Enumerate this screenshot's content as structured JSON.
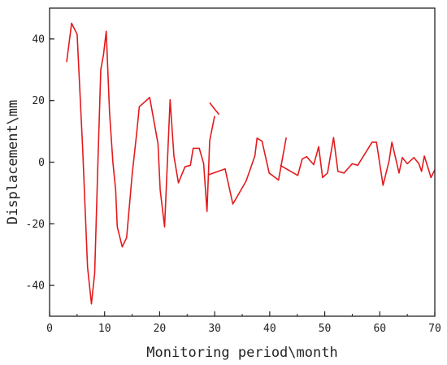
{
  "chart_data": {
    "type": "line",
    "title": "",
    "xlabel": "Monitoring period\\month",
    "ylabel": "Displacement\\mm",
    "xlim": [
      0,
      70
    ],
    "ylim": [
      -50,
      50
    ],
    "xticks": [
      0,
      10,
      20,
      30,
      40,
      50,
      60,
      70
    ],
    "yticks": [
      -40,
      -20,
      0,
      20,
      40
    ],
    "grid": false,
    "legend": "none",
    "series": [
      {
        "color": "#e31a1c",
        "segments": [
          [
            [
              3.1,
              32.5
            ],
            [
              4.0,
              45.1
            ],
            [
              5.0,
              41.5
            ],
            [
              6.0,
              5.0
            ],
            [
              6.9,
              -34.0
            ],
            [
              7.6,
              -46.0
            ],
            [
              8.2,
              -36.0
            ],
            [
              8.8,
              1.0
            ],
            [
              9.3,
              30.0
            ],
            [
              9.8,
              35.0
            ],
            [
              10.3,
              42.5
            ],
            [
              10.9,
              16.0
            ],
            [
              11.5,
              0.0
            ],
            [
              12.0,
              -9.0
            ],
            [
              12.3,
              -21.0
            ],
            [
              13.2,
              -27.5
            ],
            [
              14.0,
              -24.5
            ],
            [
              15.0,
              -4.0
            ],
            [
              15.8,
              9.0
            ],
            [
              16.3,
              18.0
            ],
            [
              18.2,
              21.0
            ],
            [
              19.7,
              6.0
            ],
            [
              20.1,
              -9.0
            ],
            [
              20.9,
              -21.0
            ],
            [
              21.9,
              20.3
            ],
            [
              22.6,
              2.0
            ],
            [
              23.4,
              -6.7
            ],
            [
              24.6,
              -1.5
            ],
            [
              25.6,
              -1.0
            ],
            [
              26.1,
              4.5
            ],
            [
              27.2,
              4.5
            ],
            [
              28.0,
              -0.5
            ],
            [
              28.6,
              -16.0
            ],
            [
              29.1,
              7.0
            ],
            [
              30.0,
              15.0
            ]
          ],
          [
            [
              29.1,
              19.3
            ],
            [
              30.1,
              17.0
            ],
            [
              30.8,
              15.5
            ]
          ],
          [
            [
              28.9,
              -4.1
            ],
            [
              31.9,
              -2.2
            ],
            [
              33.3,
              -13.6
            ],
            [
              35.7,
              -6.2
            ],
            [
              37.3,
              2.0
            ],
            [
              37.7,
              7.8
            ],
            [
              38.6,
              6.8
            ],
            [
              39.9,
              -3.5
            ],
            [
              41.6,
              -5.8
            ],
            [
              43.0,
              8.0
            ]
          ],
          [
            [
              41.9,
              -1.0
            ],
            [
              45.1,
              -4.3
            ],
            [
              45.9,
              1.0
            ],
            [
              46.7,
              1.8
            ],
            [
              48.0,
              -0.8
            ],
            [
              48.9,
              5.0
            ],
            [
              49.6,
              -5.0
            ],
            [
              50.5,
              -3.5
            ],
            [
              51.6,
              8.0
            ],
            [
              52.4,
              -3.0
            ],
            [
              53.5,
              -3.5
            ],
            [
              55.0,
              -0.5
            ],
            [
              56.0,
              -1.0
            ],
            [
              58.6,
              6.5
            ],
            [
              59.4,
              6.5
            ],
            [
              60.6,
              -7.5
            ],
            [
              61.7,
              0.5
            ],
            [
              62.2,
              6.5
            ],
            [
              63.5,
              -3.5
            ],
            [
              64.1,
              1.5
            ],
            [
              65.0,
              -0.5
            ],
            [
              66.2,
              1.5
            ],
            [
              67.1,
              -0.5
            ],
            [
              67.6,
              -3.0
            ],
            [
              68.1,
              2.0
            ],
            [
              69.3,
              -5.0
            ],
            [
              70.0,
              -2.5
            ]
          ]
        ]
      }
    ]
  }
}
